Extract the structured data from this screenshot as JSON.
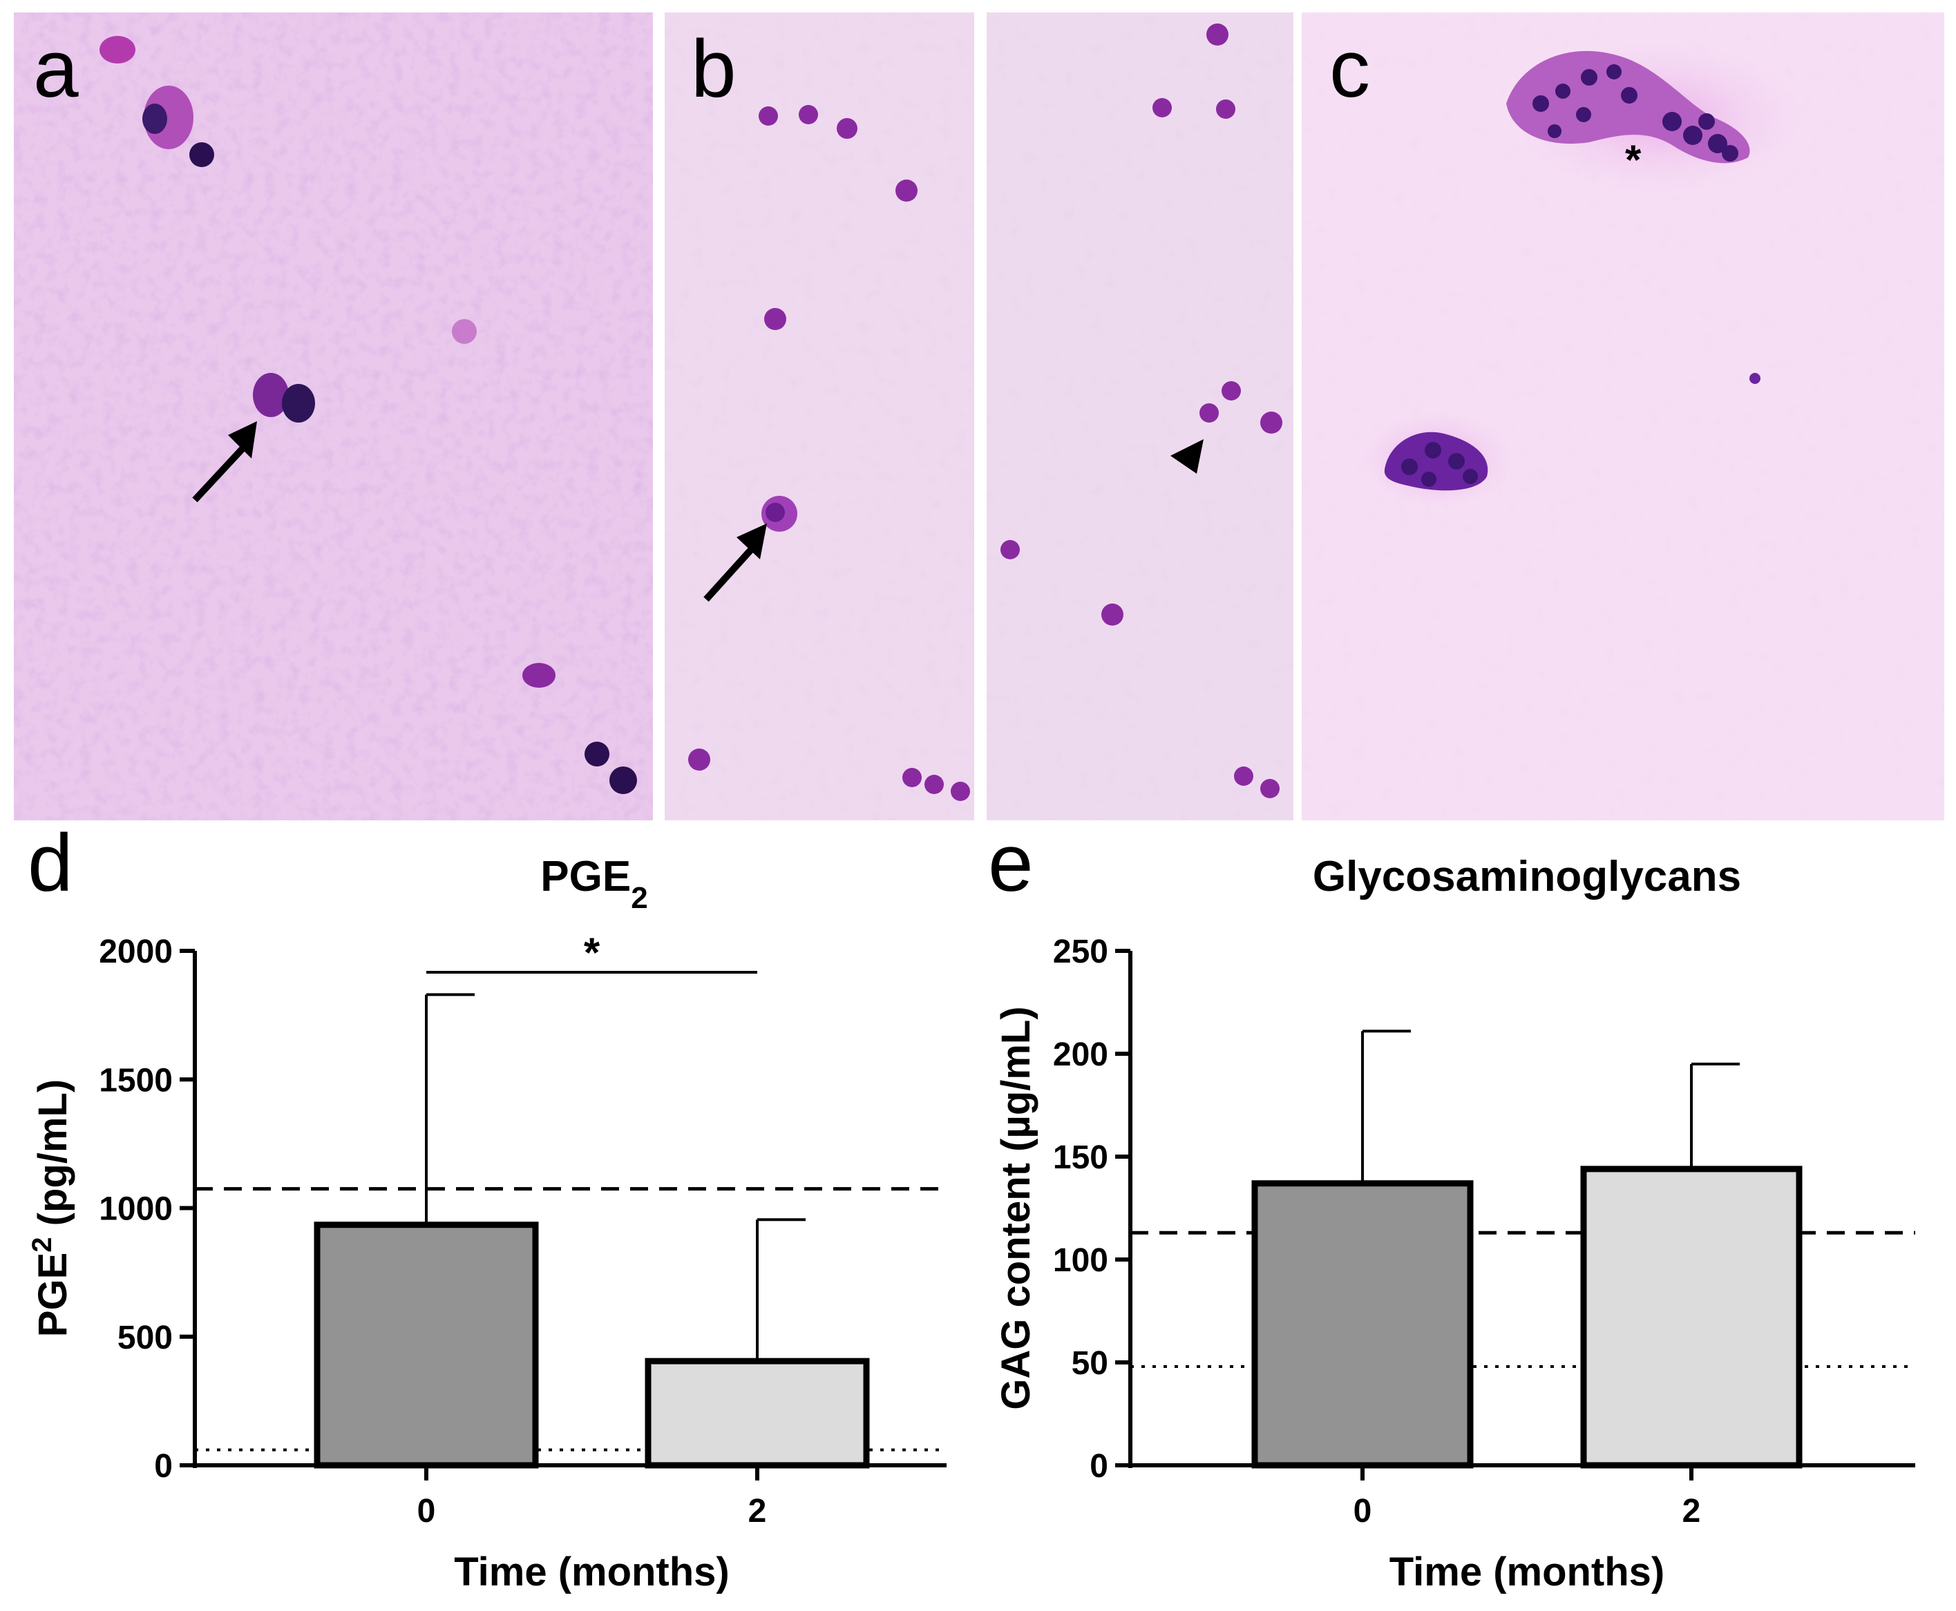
{
  "panels": {
    "a": {
      "letter": "a"
    },
    "b": {
      "letter": "b"
    },
    "c": {
      "letter": "c",
      "marker": "*"
    }
  },
  "colors": {
    "micrograph_background": "#efd6ef",
    "cell_dark": "#3a1a6a",
    "cell_purple": "#8a2aa0",
    "bar_month0": "#939393",
    "bar_month2": "#dcdcdc"
  },
  "chart_data": [
    {
      "panel_letter": "d",
      "type": "bar",
      "title_main": "PGE",
      "title_sub": "2",
      "ylabel_main": "PGE",
      "ylabel_sup": "2",
      "ylabel_unit": " (pg/mL)",
      "xlabel": "Time (months)",
      "categories": [
        "0",
        "2"
      ],
      "values": [
        935,
        405
      ],
      "error_upper": [
        1830,
        955
      ],
      "ylim": [
        0,
        2000
      ],
      "yticks": [
        "0",
        "500",
        "1000",
        "1500",
        "2000"
      ],
      "dashed_reference": 1075,
      "dotted_reference": 60,
      "significance": "*"
    },
    {
      "panel_letter": "e",
      "type": "bar",
      "title_main": "Glycosaminoglycans",
      "title_sub": "",
      "ylabel_main": "GAG content (µg/mL)",
      "ylabel_sup": "",
      "ylabel_unit": "",
      "xlabel": "Time (months)",
      "categories": [
        "0",
        "2"
      ],
      "values": [
        137,
        144
      ],
      "error_upper": [
        211,
        195
      ],
      "ylim": [
        0,
        250
      ],
      "yticks": [
        "0",
        "50",
        "100",
        "150",
        "200",
        "250"
      ],
      "dashed_reference": 113,
      "dotted_reference": 48,
      "significance": ""
    }
  ]
}
